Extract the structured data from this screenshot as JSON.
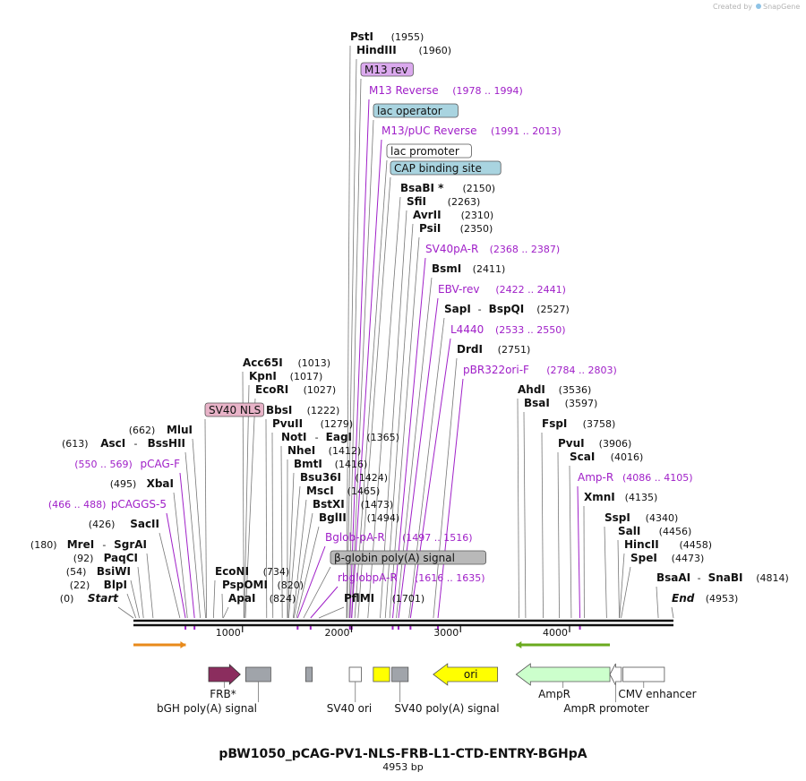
{
  "title": "pBW1050_pCAG-PV1-NLS-FRB-L1-CTD-ENTRY-BGHpA",
  "length_label": "4953 bp",
  "length_bp": 4953,
  "credit": {
    "prefix": "Created by",
    "brand": "SnapGene"
  },
  "ruler_ticks": [
    {
      "bp": 1000,
      "label": "1000"
    },
    {
      "bp": 2000,
      "label": "2000"
    },
    {
      "bp": 3000,
      "label": "3000"
    },
    {
      "bp": 4000,
      "label": "4000"
    }
  ],
  "site_labels": [
    {
      "kind": "enzyme",
      "name": "PstI",
      "pos": "(1955)",
      "bp": 1955
    },
    {
      "kind": "enzyme",
      "name": "HindIII",
      "pos": "(1960)",
      "bp": 1960
    },
    {
      "kind": "box",
      "name": "M13 rev",
      "bp": 1978,
      "color": "#dba9ee"
    },
    {
      "kind": "primer",
      "name": "M13 Reverse",
      "pos": "(1978 .. 1994)",
      "bp": 1986
    },
    {
      "kind": "box",
      "name": "lac operator",
      "bp": 2000,
      "color": "#a9d4e0"
    },
    {
      "kind": "primer",
      "name": "M13/pUC Reverse",
      "pos": "(1991 .. 2013)",
      "bp": 2002
    },
    {
      "kind": "box",
      "name": "lac promoter",
      "bp": 2030,
      "color": "#ffffff"
    },
    {
      "kind": "box",
      "name": "CAP binding site",
      "bp": 2060,
      "color": "#a9d4e0"
    },
    {
      "kind": "enzyme",
      "name": "BsaBI *",
      "pos": "(2150)",
      "bp": 2150
    },
    {
      "kind": "enzyme",
      "name": "SfiI",
      "pos": "(2263)",
      "bp": 2263
    },
    {
      "kind": "enzyme",
      "name": "AvrII",
      "pos": "(2310)",
      "bp": 2310
    },
    {
      "kind": "enzyme",
      "name": "PsiI",
      "pos": "(2350)",
      "bp": 2350
    },
    {
      "kind": "primer",
      "name": "SV40pA-R",
      "pos": "(2368 .. 2387)",
      "bp": 2378
    },
    {
      "kind": "enzyme",
      "name": "BsmI",
      "pos": "(2411)",
      "bp": 2411
    },
    {
      "kind": "primer",
      "name": "EBV-rev",
      "pos": "(2422 .. 2441)",
      "bp": 2431
    },
    {
      "kind": "enzyme",
      "name": "SapI",
      "name2": "BspQI",
      "pos": "(2527)",
      "bp": 2527
    },
    {
      "kind": "primer",
      "name": "L4440",
      "pos": "(2533 .. 2550)",
      "bp": 2541
    },
    {
      "kind": "enzyme",
      "name": "DrdI",
      "pos": "(2751)",
      "bp": 2751
    },
    {
      "kind": "primer",
      "name": "pBR322ori-F",
      "pos": "(2784 .. 2803)",
      "bp": 2793
    },
    {
      "kind": "enzyme",
      "name": "Acc65I",
      "pos": "(1013)",
      "bp": 1013
    },
    {
      "kind": "enzyme",
      "name": "KpnI",
      "pos": "(1017)",
      "bp": 1017
    },
    {
      "kind": "enzyme",
      "name": "EcoRI",
      "pos": "(1027)",
      "bp": 1027
    },
    {
      "kind": "enzyme",
      "name": "BbsI",
      "pos": "(1222)",
      "bp": 1222
    },
    {
      "kind": "enzyme",
      "name": "PvuII",
      "pos": "(1279)",
      "bp": 1279
    },
    {
      "kind": "enzyme",
      "name": "NotI",
      "name2": "EagI",
      "pos": "(1365)",
      "bp": 1365
    },
    {
      "kind": "enzyme",
      "name": "NheI",
      "pos": "(1412)",
      "bp": 1412
    },
    {
      "kind": "enzyme",
      "name": "BmtI",
      "pos": "(1416)",
      "bp": 1416
    },
    {
      "kind": "enzyme",
      "name": "Bsu36I",
      "pos": "(1424)",
      "bp": 1424
    },
    {
      "kind": "enzyme",
      "name": "MscI",
      "pos": "(1465)",
      "bp": 1465
    },
    {
      "kind": "enzyme",
      "name": "BstXI",
      "pos": "(1473)",
      "bp": 1473
    },
    {
      "kind": "enzyme",
      "name": "BglII",
      "pos": "(1494)",
      "bp": 1494
    },
    {
      "kind": "primer",
      "name": "Bglob-pA-R",
      "pos": "(1497 .. 1516)",
      "bp": 1506
    },
    {
      "kind": "box",
      "name": "β-globin poly(A) signal",
      "bp": 1560,
      "color": "#b9b9b9"
    },
    {
      "kind": "primer",
      "name": "rbglobpA-R",
      "pos": "(1616 .. 1635)",
      "bp": 1625
    },
    {
      "kind": "enzyme",
      "name": "PflMI",
      "pos": "(1701)",
      "bp": 1701
    },
    {
      "kind": "enzyme",
      "name": "AhdI",
      "pos": "(3536)",
      "bp": 3536
    },
    {
      "kind": "enzyme",
      "name": "BsaI",
      "pos": "(3597)",
      "bp": 3597
    },
    {
      "kind": "enzyme",
      "name": "FspI",
      "pos": "(3758)",
      "bp": 3758
    },
    {
      "kind": "enzyme",
      "name": "PvuI",
      "pos": "(3906)",
      "bp": 3906
    },
    {
      "kind": "enzyme",
      "name": "ScaI",
      "pos": "(4016)",
      "bp": 4016
    },
    {
      "kind": "primer",
      "name": "Amp-R",
      "pos": "(4086 .. 4105)",
      "bp": 4095
    },
    {
      "kind": "enzyme",
      "name": "XmnI",
      "pos": "(4135)",
      "bp": 4135
    },
    {
      "kind": "enzyme",
      "name": "SspI",
      "pos": "(4340)",
      "bp": 4340
    },
    {
      "kind": "enzyme",
      "name": "SalI",
      "pos": "(4456)",
      "bp": 4456
    },
    {
      "kind": "enzyme",
      "name": "HincII",
      "pos": "(4458)",
      "bp": 4458
    },
    {
      "kind": "enzyme",
      "name": "SpeI",
      "pos": "(4473)",
      "bp": 4473
    },
    {
      "kind": "enzyme",
      "name": "BsaAI",
      "name2": "SnaBI",
      "pos": "(4814)",
      "bp": 4814
    },
    {
      "kind": "enzyme",
      "name": "End",
      "pos": "(4953)",
      "bp": 4953,
      "italic": true
    },
    {
      "kind": "box",
      "name": "SV40 NLS",
      "bp": 670,
      "color": "#e8b3c8"
    },
    {
      "kind": "enzyme",
      "name": "MluI",
      "pos": "(662)",
      "bp": 662,
      "posFirst": true
    },
    {
      "kind": "enzyme",
      "name": "AscI",
      "name2": "BssHII",
      "pos": "(613)",
      "bp": 613,
      "posFirst": true
    },
    {
      "kind": "primer",
      "name": "pCAG-F",
      "pos": "(550 .. 569)",
      "bp": 560,
      "posFirst": true
    },
    {
      "kind": "enzyme",
      "name": "XbaI",
      "pos": "(495)",
      "bp": 495,
      "posFirst": true
    },
    {
      "kind": "primer",
      "name": "pCAGGS-5",
      "pos": "(466 .. 488)",
      "bp": 477,
      "posFirst": true
    },
    {
      "kind": "enzyme",
      "name": "SacII",
      "pos": "(426)",
      "bp": 426,
      "posFirst": true
    },
    {
      "kind": "enzyme",
      "name": "MreI",
      "name2": "SgrAI",
      "pos": "(180)",
      "bp": 180,
      "posFirst": true
    },
    {
      "kind": "enzyme",
      "name": "PaqCI",
      "pos": "(92)",
      "bp": 92,
      "posFirst": true
    },
    {
      "kind": "enzyme",
      "name": "BsiWI",
      "pos": "(54)",
      "bp": 54,
      "posFirst": true
    },
    {
      "kind": "enzyme",
      "name": "BlpI",
      "pos": "(22)",
      "bp": 22,
      "posFirst": true
    },
    {
      "kind": "enzyme",
      "name": "Start",
      "pos": "(0)",
      "bp": 0,
      "posFirst": true,
      "italic": true
    },
    {
      "kind": "enzyme",
      "name": "EcoNI",
      "pos": "(734)",
      "bp": 734
    },
    {
      "kind": "enzyme",
      "name": "PspOMI",
      "pos": "(820)",
      "bp": 820
    },
    {
      "kind": "enzyme",
      "name": "ApaI",
      "pos": "(824)",
      "bp": 824
    }
  ],
  "features": [
    {
      "name": "FRB*",
      "label": "FRB*",
      "color": "#8b2d5e",
      "shape": "arrow-right",
      "bp_start": 690,
      "bp_end": 980
    },
    {
      "name": "bGH poly(A) signal",
      "label": "bGH poly(A) signal",
      "color": "#a0a4aa",
      "shape": "box",
      "bp_start": 1030,
      "bp_end": 1260
    },
    {
      "name": "misc-small",
      "label": "",
      "color": "#a0a4aa",
      "shape": "box",
      "bp_start": 1580,
      "bp_end": 1640
    },
    {
      "name": "SV40 ori",
      "label": "SV40 ori",
      "color": "#ffffff",
      "shape": "box",
      "bp_start": 1980,
      "bp_end": 2090
    },
    {
      "name": "f1-like",
      "label": "",
      "color": "#ffff00",
      "shape": "box",
      "bp_start": 2200,
      "bp_end": 2350
    },
    {
      "name": "SV40 poly(A) signal",
      "label": "SV40 poly(A) signal",
      "color": "#a0a4aa",
      "shape": "box",
      "bp_start": 2370,
      "bp_end": 2520
    },
    {
      "name": "ori",
      "label": "ori",
      "color": "#ffff00",
      "shape": "arrow-left",
      "bp_start": 2750,
      "bp_end": 3340
    },
    {
      "name": "AmpR",
      "label": "AmpR",
      "color": "#ccffcc",
      "shape": "arrow-left",
      "bp_start": 3510,
      "bp_end": 4370
    },
    {
      "name": "AmpR promoter",
      "label": "AmpR promoter",
      "color": "#ffffff",
      "shape": "arrow-left",
      "bp_start": 4370,
      "bp_end": 4475
    },
    {
      "name": "CMV enhancer",
      "label": "CMV enhancer",
      "color": "#ffffff",
      "shape": "box",
      "bp_start": 4490,
      "bp_end": 4870
    }
  ],
  "orf_arrows": [
    {
      "direction": "right",
      "color": "#e88a1a",
      "bp_start": 0,
      "bp_end": 480
    },
    {
      "direction": "left",
      "color": "#6aaa1e",
      "bp_start": 3510,
      "bp_end": 4370
    }
  ]
}
